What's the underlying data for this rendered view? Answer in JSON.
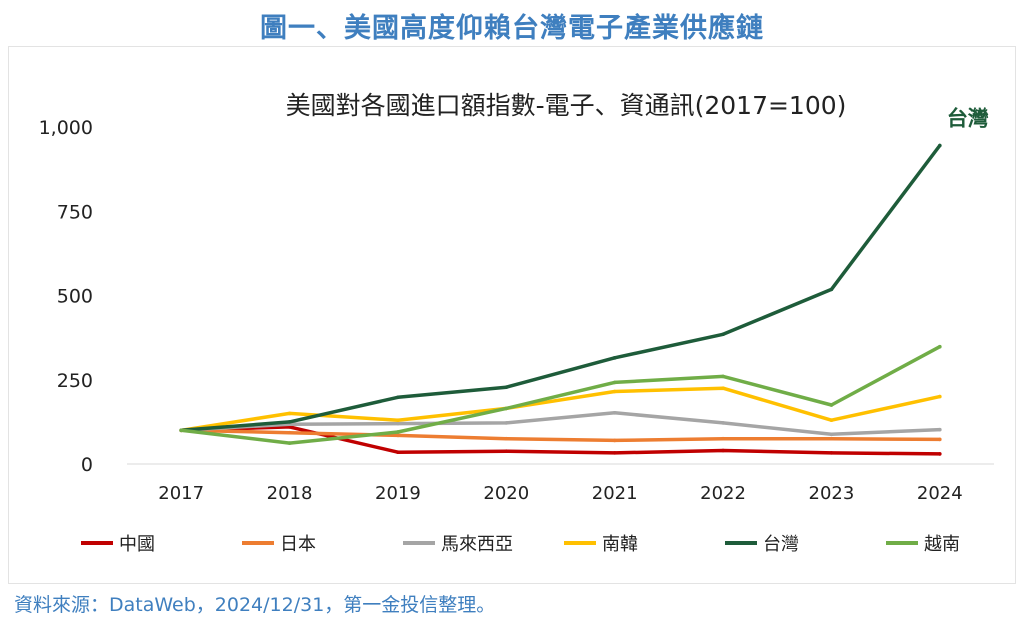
{
  "page": {
    "heading": "圖一、美國高度仰賴台灣電子產業供應鏈",
    "source": "資料來源：DataWeb，2024/12/31，第一金投信整理。"
  },
  "chart_data": {
    "type": "line",
    "title": "美國對各國進口額指數-電子、資通訊(2017=100)",
    "xlabel": "",
    "ylabel": "",
    "x": [
      "2017",
      "2018",
      "2019",
      "2020",
      "2021",
      "2022",
      "2023",
      "2024"
    ],
    "ylim": [
      0,
      1000
    ],
    "yticks": [
      0,
      250,
      500,
      750,
      1000
    ],
    "ytick_labels": [
      "0",
      "250",
      "500",
      "750",
      "1,000"
    ],
    "grid": false,
    "legend": "bottom",
    "series": [
      {
        "name": "中國",
        "color": "#c00000",
        "values": [
          100,
          110,
          35,
          38,
          33,
          40,
          33,
          30
        ]
      },
      {
        "name": "日本",
        "color": "#ed7d31",
        "values": [
          100,
          93,
          85,
          75,
          70,
          75,
          75,
          73
        ]
      },
      {
        "name": "馬來西亞",
        "color": "#a5a5a5",
        "values": [
          100,
          118,
          120,
          122,
          152,
          122,
          88,
          102
        ]
      },
      {
        "name": "南韓",
        "color": "#ffc000",
        "values": [
          100,
          150,
          130,
          165,
          215,
          225,
          130,
          200
        ]
      },
      {
        "name": "台灣",
        "color": "#1e5c3a",
        "values": [
          100,
          125,
          198,
          228,
          315,
          385,
          518,
          945
        ]
      },
      {
        "name": "越南",
        "color": "#70ad47",
        "values": [
          100,
          62,
          95,
          165,
          242,
          260,
          175,
          348
        ]
      }
    ],
    "annotations": [
      {
        "text": "台灣",
        "series": "台灣",
        "color": "#1e5c3a"
      }
    ]
  }
}
